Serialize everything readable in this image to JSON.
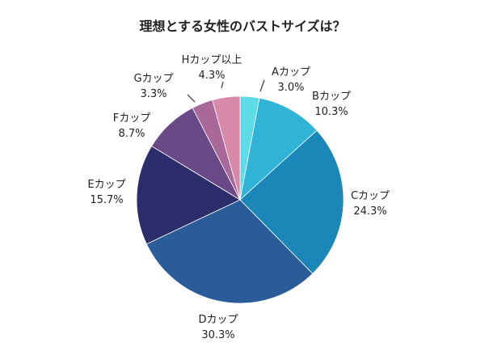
{
  "chart_data": {
    "type": "pie",
    "title": "理想とする女性のバストサイズは？",
    "categories": [
      "Aカップ",
      "Bカップ",
      "Cカップ",
      "Dカップ",
      "Eカップ",
      "Fカップ",
      "Gカップ",
      "Hカップ以上"
    ],
    "values": [
      3.0,
      10.3,
      24.3,
      30.3,
      15.7,
      8.7,
      3.3,
      4.3
    ],
    "value_labels": [
      "3.0%",
      "10.3%",
      "24.3%",
      "30.3%",
      "15.7%",
      "8.7%",
      "3.3%",
      "4.3%"
    ],
    "colors": [
      "#5ddbe6",
      "#2fb3d6",
      "#1a87b8",
      "#2a5c9a",
      "#2c2d6b",
      "#6a4a86",
      "#a9689a",
      "#d68aa8"
    ],
    "start_angle_deg": 0,
    "direction": "clockwise",
    "legend": "none"
  }
}
